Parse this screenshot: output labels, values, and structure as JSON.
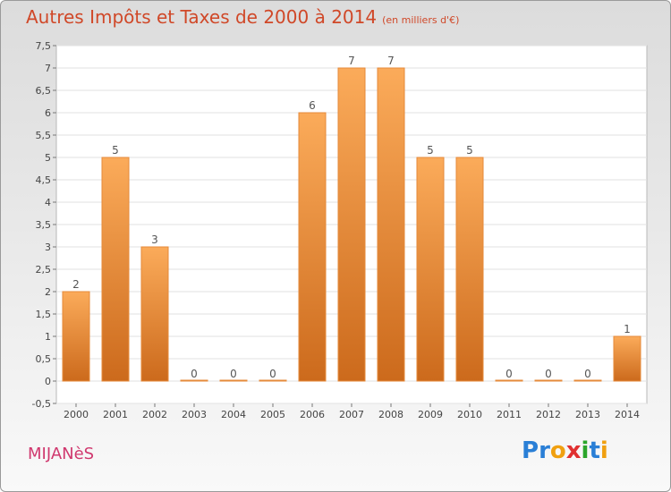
{
  "title": "Autres Impôts et Taxes de 2000 à 2014",
  "unit": "(en milliers d'€)",
  "commune": "MIJANèS",
  "logo": {
    "letters": [
      "P",
      "r",
      "o",
      "x",
      "i",
      "t",
      "i"
    ],
    "colors": [
      "#2a7fd6",
      "#2a7fd6",
      "#f0a010",
      "#e03030",
      "#2aa52a",
      "#2a7fd6",
      "#f0a010"
    ]
  },
  "colors": {
    "title": "#d04828",
    "commune": "#d0386e",
    "bar_light": "#fbab5a",
    "bar_dark": "#cc6a1c"
  },
  "chart_data": {
    "type": "bar",
    "categories": [
      "2000",
      "2001",
      "2002",
      "2003",
      "2004",
      "2005",
      "2006",
      "2007",
      "2008",
      "2009",
      "2010",
      "2011",
      "2012",
      "2013",
      "2014"
    ],
    "values": [
      2,
      5,
      3,
      0,
      0,
      0,
      6,
      7,
      7,
      5,
      5,
      0,
      0,
      0,
      1
    ],
    "ylim": [
      -0.5,
      7.5
    ],
    "yticks": [
      "-0,5",
      "0",
      "0,5",
      "1",
      "1,5",
      "2",
      "2,5",
      "3",
      "3,5",
      "4",
      "4,5",
      "5",
      "5,5",
      "6",
      "6,5",
      "7",
      "7,5"
    ],
    "grid": true
  }
}
